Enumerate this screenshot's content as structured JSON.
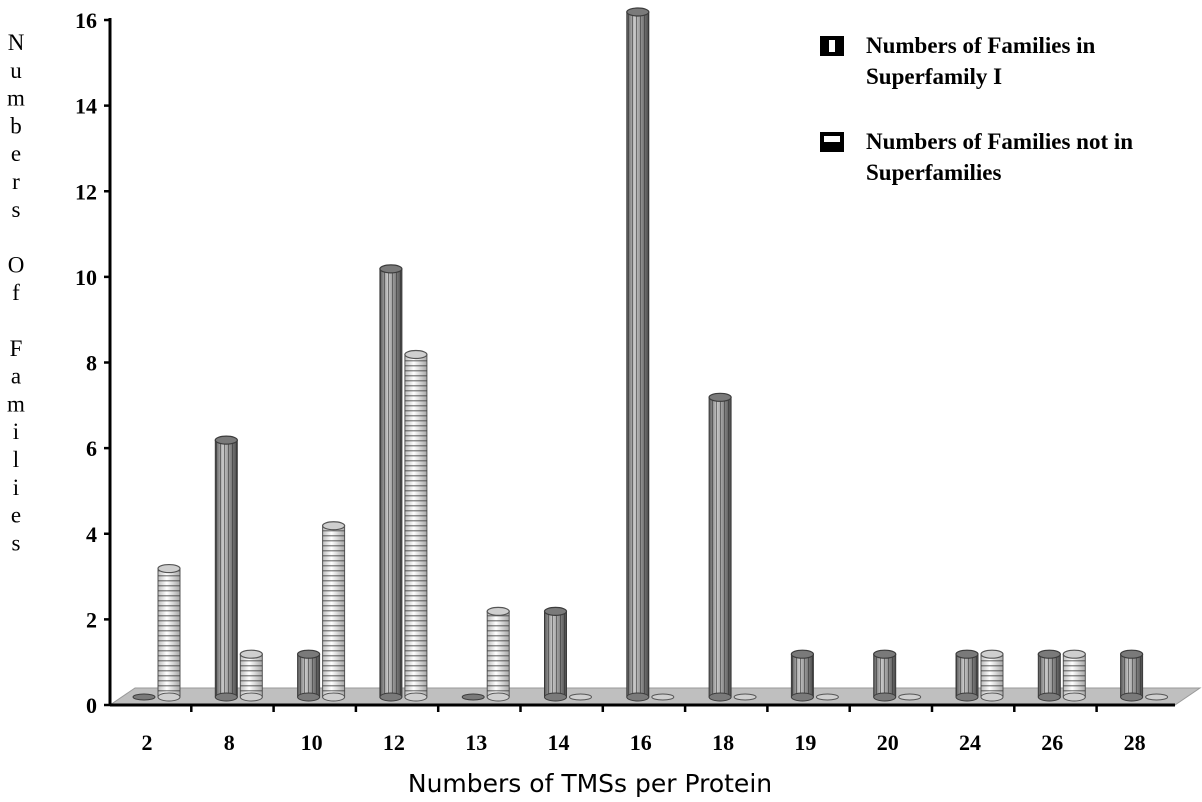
{
  "chart_data": {
    "type": "bar",
    "categories": [
      "2",
      "8",
      "10",
      "12",
      "13",
      "14",
      "16",
      "18",
      "19",
      "20",
      "24",
      "26",
      "28"
    ],
    "series": [
      {
        "name": "Numbers of Families in Superfamily I",
        "values": [
          0,
          6,
          1,
          10,
          0,
          2,
          16,
          7,
          1,
          1,
          1,
          1,
          1
        ]
      },
      {
        "name": "Numbers of Families not in Superfamilies",
        "values": [
          3,
          1,
          4,
          8,
          2,
          0,
          0,
          0,
          0,
          0,
          1,
          1,
          0
        ]
      }
    ],
    "xlabel": "Numbers of TMSs per Protein",
    "ylabel": "Numbers Of Families",
    "ylim": [
      0,
      16
    ],
    "yticks": [
      "0",
      "2",
      "4",
      "6",
      "8",
      "10",
      "12",
      "14",
      "16"
    ],
    "legend_position": "top-right",
    "grid": false
  },
  "legend": [
    {
      "line1": "Numbers of Families in",
      "line2": "Superfamily I"
    },
    {
      "line1": "Numbers of Families not in",
      "line2": "Superfamilies"
    }
  ],
  "colors": {
    "series1": "#8c8c8c",
    "series2": "#dcdcdc",
    "floor": "#bfbfbf",
    "axis": "#000000"
  }
}
